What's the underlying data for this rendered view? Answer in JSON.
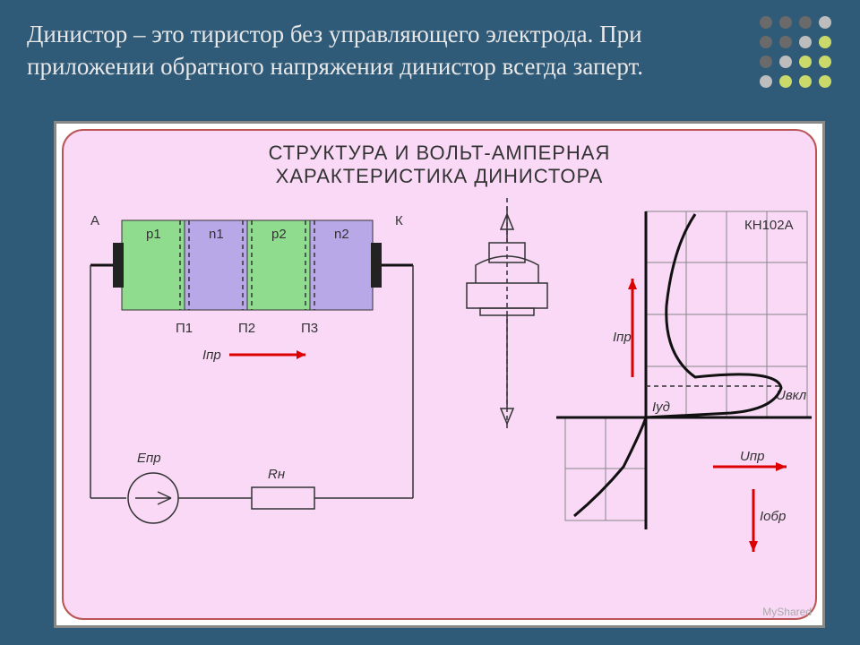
{
  "heading": "Динистор – это тиристор без управляющего электрода. При приложении обратного напряжения динистор всегда заперт.",
  "dots": {
    "rows": 4,
    "cols": 4,
    "colors": [
      "#6a6a6a",
      "#6a6a6a",
      "#6a6a6a",
      "#bdbdbd",
      "#6a6a6a",
      "#6a6a6a",
      "#bdbdbd",
      "#c9d96a",
      "#6a6a6a",
      "#bdbdbd",
      "#c9d96a",
      "#c9d96a",
      "#bdbdbd",
      "#c9d96a",
      "#c9d96a",
      "#c9d96a"
    ]
  },
  "figure": {
    "title_line1": "СТРУКТУРА И ВОЛЬТ-АМПЕРНАЯ",
    "title_line2": "ХАРАКТЕРИСТИКА ДИНИСТОРА",
    "background": "#f9d9f6",
    "border_color": "#b55",
    "structure": {
      "anode_label": "А",
      "cathode_label": "К",
      "regions": [
        {
          "label": "p1",
          "fill": "#8fdc8f"
        },
        {
          "label": "n1",
          "fill": "#b8a8e8"
        },
        {
          "label": "p2",
          "fill": "#8fdc8f"
        },
        {
          "label": "n2",
          "fill": "#b8a8e8"
        }
      ],
      "junctions": [
        "П1",
        "П2",
        "П3"
      ],
      "current_label": "Iпр",
      "emf_label": "Eпр",
      "resistor_label": "Rн"
    },
    "chart": {
      "device_label": "КН102А",
      "i_pr_label": "Iпр",
      "u_pr_label": "Uпр",
      "i_obr_label": "Iобр",
      "u_vkl_label": "Uвкл",
      "grid_color": "#888",
      "curve_color": "#111",
      "arrow_color": "#d00"
    }
  },
  "watermark": "MyShared"
}
